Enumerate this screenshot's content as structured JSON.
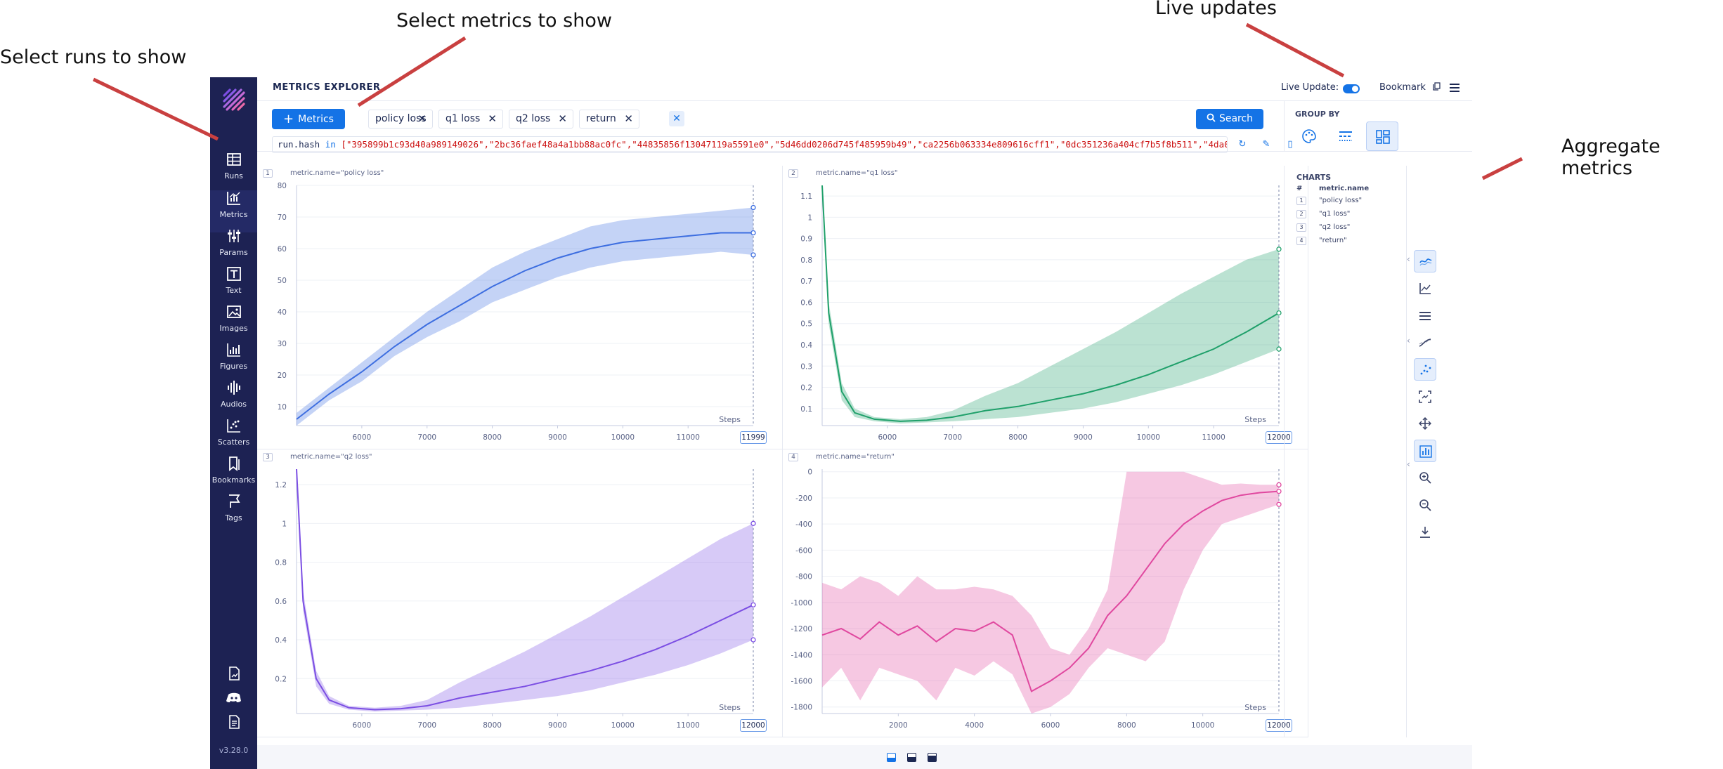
{
  "annotations": {
    "runs": "Select runs to show",
    "metrics": "Select metrics to show",
    "live": "Live updates",
    "aggregate": "Aggregate metrics"
  },
  "header": {
    "title": "METRICS EXPLORER",
    "live_label": "Live Update:",
    "live_enabled": true,
    "bookmark_label": "Bookmark"
  },
  "sidebar": {
    "items": [
      {
        "label": "Runs",
        "icon": "table-icon"
      },
      {
        "label": "Metrics",
        "icon": "line-chart-icon"
      },
      {
        "label": "Params",
        "icon": "sliders-icon"
      },
      {
        "label": "Text",
        "icon": "text-icon"
      },
      {
        "label": "Images",
        "icon": "image-icon"
      },
      {
        "label": "Figures",
        "icon": "bar-chart-icon"
      },
      {
        "label": "Audios",
        "icon": "audio-icon"
      },
      {
        "label": "Scatters",
        "icon": "scatter-icon"
      },
      {
        "label": "Bookmarks",
        "icon": "bookmark-icon"
      },
      {
        "label": "Tags",
        "icon": "tag-icon"
      }
    ],
    "version": "v3.28.0"
  },
  "toolbar": {
    "metrics_button": "Metrics",
    "chips": [
      "policy loss",
      "q1 loss",
      "q2 loss",
      "return"
    ],
    "search_button": "Search",
    "query_prefix": "run.",
    "query_kw": "hash",
    "query_op": " in ",
    "query_value": "[\"395899b1c93d40a989149026\",\"2bc36faef48a4a1bb88ac0fc\",\"44835856f13047119a5591e0\",\"5d46dd0206d745f485959b49\",\"ca2256b063334e809616cff1\",\"0dc351236a404cf7b5f8b511\",\"4da0"
  },
  "group_by": {
    "title": "GROUP BY",
    "options": [
      "color",
      "stroke",
      "chart"
    ],
    "active": "chart"
  },
  "charts_panel": {
    "title": "CHARTS",
    "col_num": "#",
    "col_name": "metric.name",
    "rows": [
      {
        "n": "1",
        "name": "\"policy loss\""
      },
      {
        "n": "2",
        "name": "\"q1 loss\""
      },
      {
        "n": "3",
        "name": "\"q2 loss\""
      },
      {
        "n": "4",
        "name": "\"return\""
      }
    ]
  },
  "colors": {
    "accent": "#1473e6",
    "sidebar": "#1d2253",
    "policy": "#3d6ee0",
    "q1": "#1fa06a",
    "q2": "#7b4ee3",
    "return": "#e0489f"
  },
  "chart_data": [
    {
      "type": "line",
      "title": "metric.name=\"policy loss\"",
      "index": "1",
      "xlabel": "Steps",
      "xlim": [
        5000,
        11999
      ],
      "ylim": [
        4,
        80
      ],
      "xticks": [
        6000,
        7000,
        8000,
        9000,
        10000,
        11000
      ],
      "yticks": [
        10,
        20,
        30,
        40,
        50,
        60,
        70,
        80
      ],
      "end_label": "11999",
      "color": "#3d6ee0",
      "x": [
        5000,
        5500,
        6000,
        6500,
        7000,
        7500,
        8000,
        8500,
        9000,
        9500,
        10000,
        10500,
        11000,
        11500,
        11999
      ],
      "mean": [
        6,
        14,
        21,
        29,
        36,
        42,
        48,
        53,
        57,
        60,
        62,
        63,
        64,
        65,
        65
      ],
      "upper": [
        8,
        16,
        24,
        32,
        40,
        47,
        54,
        59,
        63,
        67,
        69,
        70,
        71,
        72,
        73
      ],
      "lower": [
        4,
        12,
        18,
        26,
        32,
        37,
        43,
        47,
        51,
        54,
        56,
        57,
        58,
        59,
        58
      ]
    },
    {
      "type": "line",
      "title": "metric.name=\"q1 loss\"",
      "index": "2",
      "xlabel": "Steps",
      "xlim": [
        5000,
        12000
      ],
      "ylim": [
        0.02,
        1.15
      ],
      "xticks": [
        6000,
        7000,
        8000,
        9000,
        10000,
        11000
      ],
      "yticks": [
        0.1,
        0.2,
        0.3,
        0.4,
        0.5,
        0.6,
        0.7,
        0.8,
        0.9,
        1,
        1.1
      ],
      "end_label": "12000",
      "color": "#1fa06a",
      "x": [
        5000,
        5100,
        5300,
        5500,
        5800,
        6200,
        6600,
        7000,
        7500,
        8000,
        8500,
        9000,
        9500,
        10000,
        10500,
        11000,
        11500,
        12000
      ],
      "mean": [
        1.15,
        0.55,
        0.18,
        0.08,
        0.05,
        0.04,
        0.045,
        0.06,
        0.09,
        0.11,
        0.14,
        0.17,
        0.21,
        0.26,
        0.32,
        0.38,
        0.46,
        0.55
      ],
      "upper": [
        1.15,
        0.6,
        0.22,
        0.1,
        0.06,
        0.05,
        0.06,
        0.09,
        0.16,
        0.22,
        0.3,
        0.38,
        0.46,
        0.55,
        0.64,
        0.72,
        0.8,
        0.85
      ],
      "lower": [
        1.15,
        0.5,
        0.14,
        0.06,
        0.04,
        0.03,
        0.035,
        0.04,
        0.05,
        0.06,
        0.08,
        0.1,
        0.13,
        0.17,
        0.21,
        0.26,
        0.32,
        0.38
      ]
    },
    {
      "type": "line",
      "title": "metric.name=\"q2 loss\"",
      "index": "3",
      "xlabel": "Steps",
      "xlim": [
        5000,
        12000
      ],
      "ylim": [
        0.02,
        1.28
      ],
      "xticks": [
        6000,
        7000,
        8000,
        9000,
        10000,
        11000
      ],
      "yticks": [
        0.2,
        0.4,
        0.6,
        0.8,
        1,
        1.2
      ],
      "end_label": "12000",
      "color": "#7b4ee3",
      "x": [
        5000,
        5100,
        5300,
        5500,
        5800,
        6200,
        6600,
        7000,
        7500,
        8000,
        8500,
        9000,
        9500,
        10000,
        10500,
        11000,
        11500,
        12000
      ],
      "mean": [
        1.28,
        0.6,
        0.2,
        0.09,
        0.05,
        0.04,
        0.045,
        0.06,
        0.1,
        0.13,
        0.16,
        0.2,
        0.24,
        0.29,
        0.35,
        0.42,
        0.5,
        0.58
      ],
      "upper": [
        1.28,
        0.65,
        0.24,
        0.11,
        0.06,
        0.05,
        0.06,
        0.09,
        0.18,
        0.26,
        0.34,
        0.43,
        0.52,
        0.62,
        0.72,
        0.82,
        0.92,
        1.0
      ],
      "lower": [
        1.28,
        0.55,
        0.16,
        0.07,
        0.04,
        0.03,
        0.035,
        0.04,
        0.05,
        0.07,
        0.09,
        0.11,
        0.14,
        0.18,
        0.22,
        0.27,
        0.33,
        0.4
      ]
    },
    {
      "type": "line",
      "title": "metric.name=\"return\"",
      "index": "4",
      "xlabel": "Steps",
      "xlim": [
        0,
        12000
      ],
      "ylim": [
        -1850,
        20
      ],
      "xticks": [
        2000,
        4000,
        6000,
        8000,
        10000
      ],
      "yticks": [
        0,
        -200,
        -400,
        -600,
        -800,
        -1000,
        -1200,
        -1400,
        -1600,
        -1800
      ],
      "end_label": "12000",
      "color": "#e0489f",
      "x": [
        0,
        500,
        1000,
        1500,
        2000,
        2500,
        3000,
        3500,
        4000,
        4500,
        5000,
        5500,
        6000,
        6500,
        7000,
        7500,
        8000,
        8500,
        9000,
        9500,
        10000,
        10500,
        11000,
        11500,
        12000
      ],
      "mean": [
        -1250,
        -1200,
        -1280,
        -1150,
        -1250,
        -1180,
        -1300,
        -1200,
        -1220,
        -1150,
        -1250,
        -1680,
        -1600,
        -1500,
        -1350,
        -1100,
        -950,
        -750,
        -550,
        -400,
        -300,
        -220,
        -180,
        -160,
        -150
      ],
      "upper": [
        -850,
        -900,
        -800,
        -850,
        -950,
        -800,
        -900,
        -900,
        -880,
        -900,
        -950,
        -1100,
        -1350,
        -1400,
        -1200,
        -900,
        0,
        0,
        0,
        0,
        -50,
        -100,
        -90,
        -100,
        -100
      ],
      "lower": [
        -1650,
        -1500,
        -1750,
        -1500,
        -1550,
        -1600,
        -1750,
        -1500,
        -1560,
        -1450,
        -1550,
        -1850,
        -1800,
        -1700,
        -1500,
        -1350,
        -1400,
        -1450,
        -1300,
        -900,
        -600,
        -400,
        -350,
        -300,
        -250
      ]
    }
  ]
}
